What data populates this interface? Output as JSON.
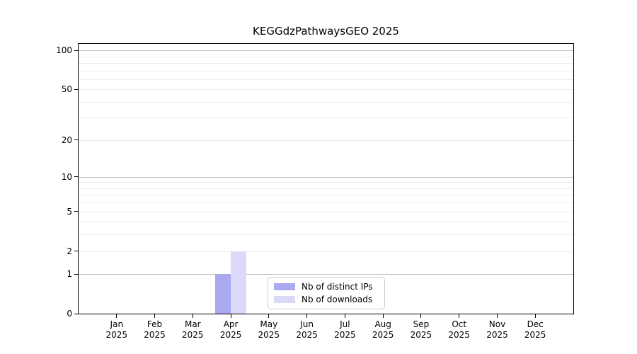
{
  "chart_data": {
    "type": "bar",
    "title": "KEGGdzPathwaysGEO 2025",
    "scale": "log1p",
    "categories": [
      "Jan",
      "Feb",
      "Mar",
      "Apr",
      "May",
      "Jun",
      "Jul",
      "Aug",
      "Sep",
      "Oct",
      "Nov",
      "Dec"
    ],
    "year_label": "2025",
    "series": [
      {
        "name": "Nb of distinct IPs",
        "color": "#a9a9f2",
        "values": [
          0,
          0,
          0,
          1,
          0,
          0,
          0,
          0,
          0,
          0,
          0,
          0
        ]
      },
      {
        "name": "Nb of downloads",
        "color": "#dadaf8",
        "values": [
          0,
          0,
          0,
          2,
          0,
          0,
          0,
          0,
          0,
          0,
          0,
          0
        ]
      }
    ],
    "yticks": [
      0,
      1,
      2,
      5,
      10,
      20,
      50,
      100
    ],
    "ylim": [
      0,
      112
    ],
    "gridlines": {
      "major": [
        1,
        10,
        100
      ],
      "minor": [
        2,
        3,
        4,
        5,
        6,
        7,
        8,
        9,
        20,
        30,
        40,
        50,
        60,
        70,
        80,
        90
      ]
    },
    "legend_position": "bottom-center",
    "grid": true,
    "colors": {
      "spine": "#000000",
      "major_grid": "#c0c0c0",
      "minor_grid": "#ededed"
    }
  }
}
